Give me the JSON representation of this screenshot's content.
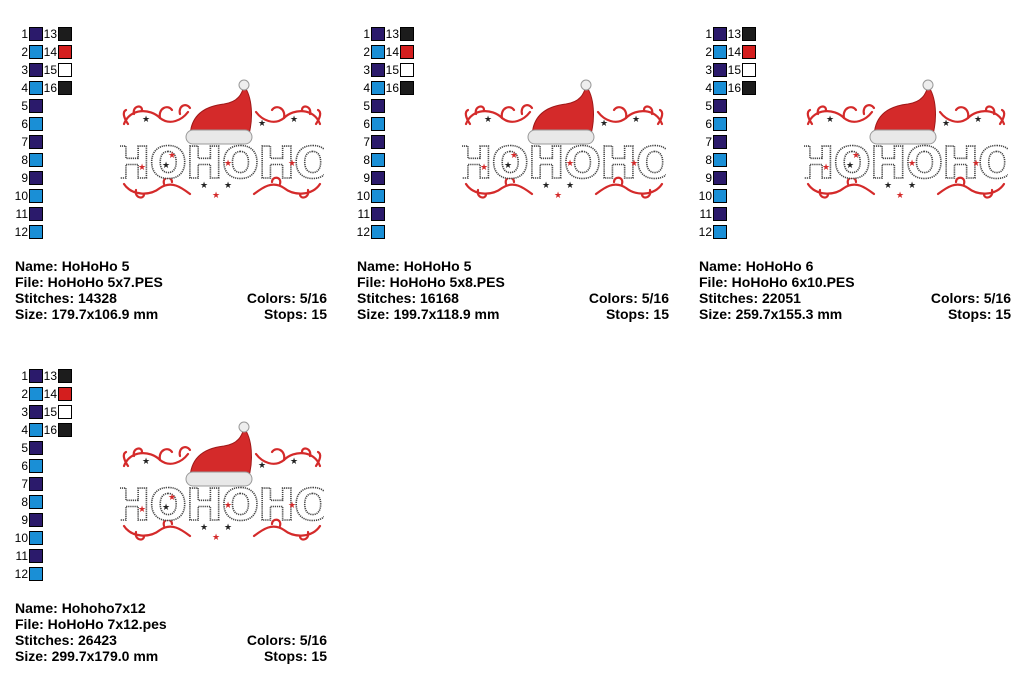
{
  "labels": {
    "name": "Name:",
    "file": "File:",
    "stitches": "Stitches:",
    "size": "Size:",
    "colors": "Colors:",
    "stops": "Stops:"
  },
  "palette": [
    {
      "num": "1",
      "color": "#2b1a6b"
    },
    {
      "num": "2",
      "color": "#1a8fd6"
    },
    {
      "num": "3",
      "color": "#2b1a6b"
    },
    {
      "num": "4",
      "color": "#1a8fd6"
    },
    {
      "num": "5",
      "color": "#2b1a6b"
    },
    {
      "num": "6",
      "color": "#1a8fd6"
    },
    {
      "num": "7",
      "color": "#2b1a6b"
    },
    {
      "num": "8",
      "color": "#1a8fd6"
    },
    {
      "num": "9",
      "color": "#2b1a6b"
    },
    {
      "num": "10",
      "color": "#1a8fd6"
    },
    {
      "num": "11",
      "color": "#2b1a6b"
    },
    {
      "num": "12",
      "color": "#1a8fd6"
    },
    {
      "num": "13",
      "color": "#1c1c1c"
    },
    {
      "num": "14",
      "color": "#d41e1e"
    },
    {
      "num": "15",
      "color": "#ffffff"
    },
    {
      "num": "16",
      "color": "#1c1c1c"
    }
  ],
  "artwork_text": "HOHOHO",
  "designs": [
    {
      "name": "HoHoHo 5",
      "file": "HoHoHo 5x7.PES",
      "stitches": "14328",
      "size": "179.7x106.9 mm",
      "colors": "5/16",
      "stops": "15"
    },
    {
      "name": "HoHoHo 5",
      "file": "HoHoHo 5x8.PES",
      "stitches": "16168",
      "size": "199.7x118.9 mm",
      "colors": "5/16",
      "stops": "15"
    },
    {
      "name": "HoHoHo 6",
      "file": "HoHoHo 6x10.PES",
      "stitches": "22051",
      "size": "259.7x155.3 mm",
      "colors": "5/16",
      "stops": "15"
    },
    {
      "name": "Hohoho7x12",
      "file": "HoHoHo 7x12.pes",
      "stitches": "26423",
      "size": "299.7x179.0 mm",
      "colors": "5/16",
      "stops": "15"
    }
  ]
}
